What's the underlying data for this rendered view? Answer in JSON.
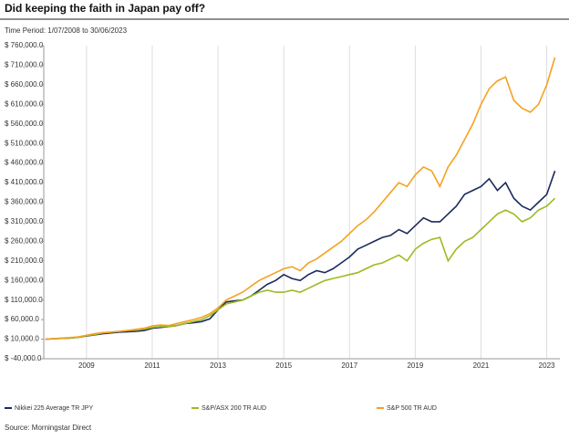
{
  "chart_data": {
    "type": "line",
    "title": "Did keeping the faith in Japan pay off?",
    "subtitle": "Time Period: 1/07/2008 to 30/06/2023",
    "source": "Source: Morningstar Direct",
    "x": [
      2007.75,
      2008,
      2008.25,
      2008.5,
      2008.75,
      2009,
      2009.25,
      2009.5,
      2009.75,
      2010,
      2010.25,
      2010.5,
      2010.75,
      2011,
      2011.25,
      2011.5,
      2011.75,
      2012,
      2012.25,
      2012.5,
      2012.75,
      2013,
      2013.25,
      2013.5,
      2013.75,
      2014,
      2014.25,
      2014.5,
      2014.75,
      2015,
      2015.25,
      2015.5,
      2015.75,
      2016,
      2016.25,
      2016.5,
      2016.75,
      2017,
      2017.25,
      2017.5,
      2017.75,
      2018,
      2018.25,
      2018.5,
      2018.75,
      2019,
      2019.25,
      2019.5,
      2019.75,
      2020,
      2020.25,
      2020.5,
      2020.75,
      2021,
      2021.25,
      2021.5,
      2021.75,
      2022,
      2022.25,
      2022.5,
      2022.75,
      2023,
      2023.25
    ],
    "series": [
      {
        "name": "Nikkei 225 Average TR JPY",
        "color": "#1b2a5e",
        "values": [
          10000,
          11000,
          12000,
          13000,
          15000,
          18000,
          21000,
          24000,
          26000,
          28000,
          29000,
          30000,
          32000,
          38000,
          40000,
          42000,
          45000,
          50000,
          52000,
          55000,
          62000,
          85000,
          105000,
          108000,
          110000,
          120000,
          135000,
          150000,
          160000,
          175000,
          165000,
          160000,
          175000,
          185000,
          180000,
          190000,
          205000,
          220000,
          240000,
          250000,
          260000,
          270000,
          275000,
          290000,
          280000,
          300000,
          320000,
          310000,
          310000,
          330000,
          350000,
          380000,
          390000,
          400000,
          420000,
          390000,
          410000,
          370000,
          350000,
          340000,
          360000,
          380000,
          440000
        ]
      },
      {
        "name": "S&P/ASX 200 TR AUD",
        "color": "#9bbb22",
        "values": [
          10000,
          11000,
          12000,
          13000,
          15000,
          19000,
          22000,
          26000,
          28000,
          30000,
          32000,
          33000,
          36000,
          40000,
          42000,
          42000,
          45000,
          50000,
          55000,
          60000,
          70000,
          85000,
          100000,
          105000,
          110000,
          120000,
          130000,
          135000,
          130000,
          130000,
          135000,
          130000,
          140000,
          150000,
          160000,
          165000,
          170000,
          175000,
          180000,
          190000,
          200000,
          205000,
          215000,
          225000,
          210000,
          240000,
          255000,
          265000,
          270000,
          210000,
          240000,
          260000,
          270000,
          290000,
          310000,
          330000,
          340000,
          330000,
          310000,
          320000,
          340000,
          350000,
          370000
        ]
      },
      {
        "name": "S&P 500 TR AUD",
        "color": "#f5a11f",
        "values": [
          10000,
          11000,
          13000,
          14000,
          16000,
          20000,
          24000,
          27000,
          28000,
          30000,
          32000,
          35000,
          38000,
          44000,
          46000,
          45000,
          50000,
          55000,
          60000,
          66000,
          75000,
          90000,
          110000,
          120000,
          130000,
          145000,
          160000,
          170000,
          180000,
          190000,
          195000,
          185000,
          205000,
          215000,
          230000,
          245000,
          260000,
          280000,
          300000,
          315000,
          335000,
          360000,
          385000,
          410000,
          400000,
          430000,
          450000,
          440000,
          400000,
          450000,
          480000,
          520000,
          560000,
          610000,
          650000,
          670000,
          680000,
          620000,
          600000,
          590000,
          610000,
          660000,
          730000
        ]
      }
    ],
    "xlim": [
      2007.7,
      2023.4
    ],
    "xticks": [
      2009,
      2011,
      2013,
      2015,
      2017,
      2019,
      2021,
      2023
    ],
    "ylim": [
      -40000,
      760000
    ],
    "yticks": [
      {
        "value": -40000,
        "label": "$ -40,000.0"
      },
      {
        "value": 10000,
        "label": "$ 10,000.0"
      },
      {
        "value": 60000,
        "label": "$ 60,000.0"
      },
      {
        "value": 110000,
        "label": "$ 110,000.0"
      },
      {
        "value": 160000,
        "label": "$ 160,000.0"
      },
      {
        "value": 210000,
        "label": "$ 210,000.0"
      },
      {
        "value": 260000,
        "label": "$ 260,000.0"
      },
      {
        "value": 310000,
        "label": "$ 310,000.0"
      },
      {
        "value": 360000,
        "label": "$ 360,000.0"
      },
      {
        "value": 410000,
        "label": "$ 410,000.0"
      },
      {
        "value": 460000,
        "label": "$ 460,000.0"
      },
      {
        "value": 510000,
        "label": "$ 510,000.0"
      },
      {
        "value": 560000,
        "label": "$ 560,000.0"
      },
      {
        "value": 610000,
        "label": "$ 610,000.0"
      },
      {
        "value": 660000,
        "label": "$ 660,000.0"
      },
      {
        "value": 710000,
        "label": "$ 710,000.0"
      },
      {
        "value": 760000,
        "label": "$ 760,000.0"
      }
    ],
    "grid": "x"
  }
}
